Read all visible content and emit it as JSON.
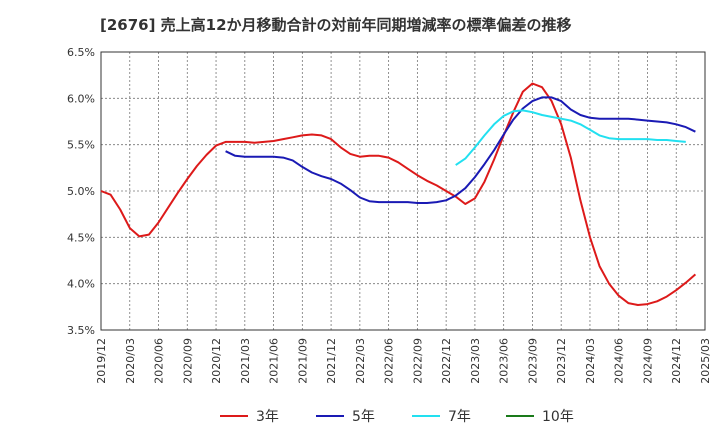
{
  "title": "[2676]  売上高12か月移動合計の対前年同期増減率の標準偏差の推移",
  "chart_data": {
    "type": "line",
    "y_ticks": [
      "6.5%",
      "6.0%",
      "5.5%",
      "5.0%",
      "4.5%",
      "4.0%",
      "3.5%"
    ],
    "ylim": [
      3.5,
      6.5
    ],
    "x_ticks": [
      "2019/12",
      "2020/03",
      "2020/06",
      "2020/09",
      "2020/12",
      "2021/03",
      "2021/06",
      "2021/09",
      "2021/12",
      "2022/03",
      "2022/06",
      "2022/09",
      "2022/12",
      "2023/03",
      "2023/06",
      "2023/09",
      "2023/12",
      "2024/03",
      "2024/06",
      "2024/09",
      "2024/12",
      "2025/03"
    ],
    "grid": true,
    "legend_position": "bottom",
    "series": [
      {
        "name": "3年",
        "color": "#dd1a1a",
        "start": "2019/12",
        "values": [
          5.0,
          4.96,
          4.8,
          4.6,
          4.51,
          4.53,
          4.66,
          4.82,
          4.98,
          5.13,
          5.27,
          5.39,
          5.49,
          5.53,
          5.53,
          5.53,
          5.52,
          5.53,
          5.54,
          5.56,
          5.58,
          5.6,
          5.61,
          5.6,
          5.56,
          5.47,
          5.4,
          5.37,
          5.38,
          5.38,
          5.36,
          5.31,
          5.24,
          5.17,
          5.11,
          5.06,
          5.0,
          4.94,
          4.86,
          4.92,
          5.1,
          5.34,
          5.6,
          5.85,
          6.07,
          6.16,
          6.12,
          5.97,
          5.72,
          5.36,
          4.9,
          4.5,
          4.19,
          4.0,
          3.87,
          3.79,
          3.77,
          3.78,
          3.81,
          3.86,
          3.93,
          4.01,
          4.1
        ]
      },
      {
        "name": "5年",
        "color": "#1a1ab4",
        "start": "2021/01",
        "values": [
          5.43,
          5.38,
          5.37,
          5.37,
          5.37,
          5.37,
          5.36,
          5.33,
          5.26,
          5.2,
          5.16,
          5.13,
          5.08,
          5.01,
          4.93,
          4.89,
          4.88,
          4.88,
          4.88,
          4.88,
          4.87,
          4.87,
          4.88,
          4.9,
          4.95,
          5.03,
          5.15,
          5.29,
          5.44,
          5.61,
          5.77,
          5.89,
          5.97,
          6.01,
          6.01,
          5.97,
          5.88,
          5.82,
          5.79,
          5.78,
          5.78,
          5.78,
          5.78,
          5.77,
          5.76,
          5.75,
          5.74,
          5.72,
          5.69,
          5.64
        ]
      },
      {
        "name": "7年",
        "color": "#22e0f0",
        "start": "2023/01",
        "values": [
          5.28,
          5.35,
          5.47,
          5.6,
          5.72,
          5.81,
          5.86,
          5.87,
          5.85,
          5.82,
          5.8,
          5.78,
          5.76,
          5.72,
          5.66,
          5.6,
          5.57,
          5.56,
          5.56,
          5.56,
          5.56,
          5.55,
          5.55,
          5.54,
          5.53
        ]
      },
      {
        "name": "10年",
        "color": "#1a7a1a",
        "start": "2024/12",
        "values": []
      }
    ]
  }
}
